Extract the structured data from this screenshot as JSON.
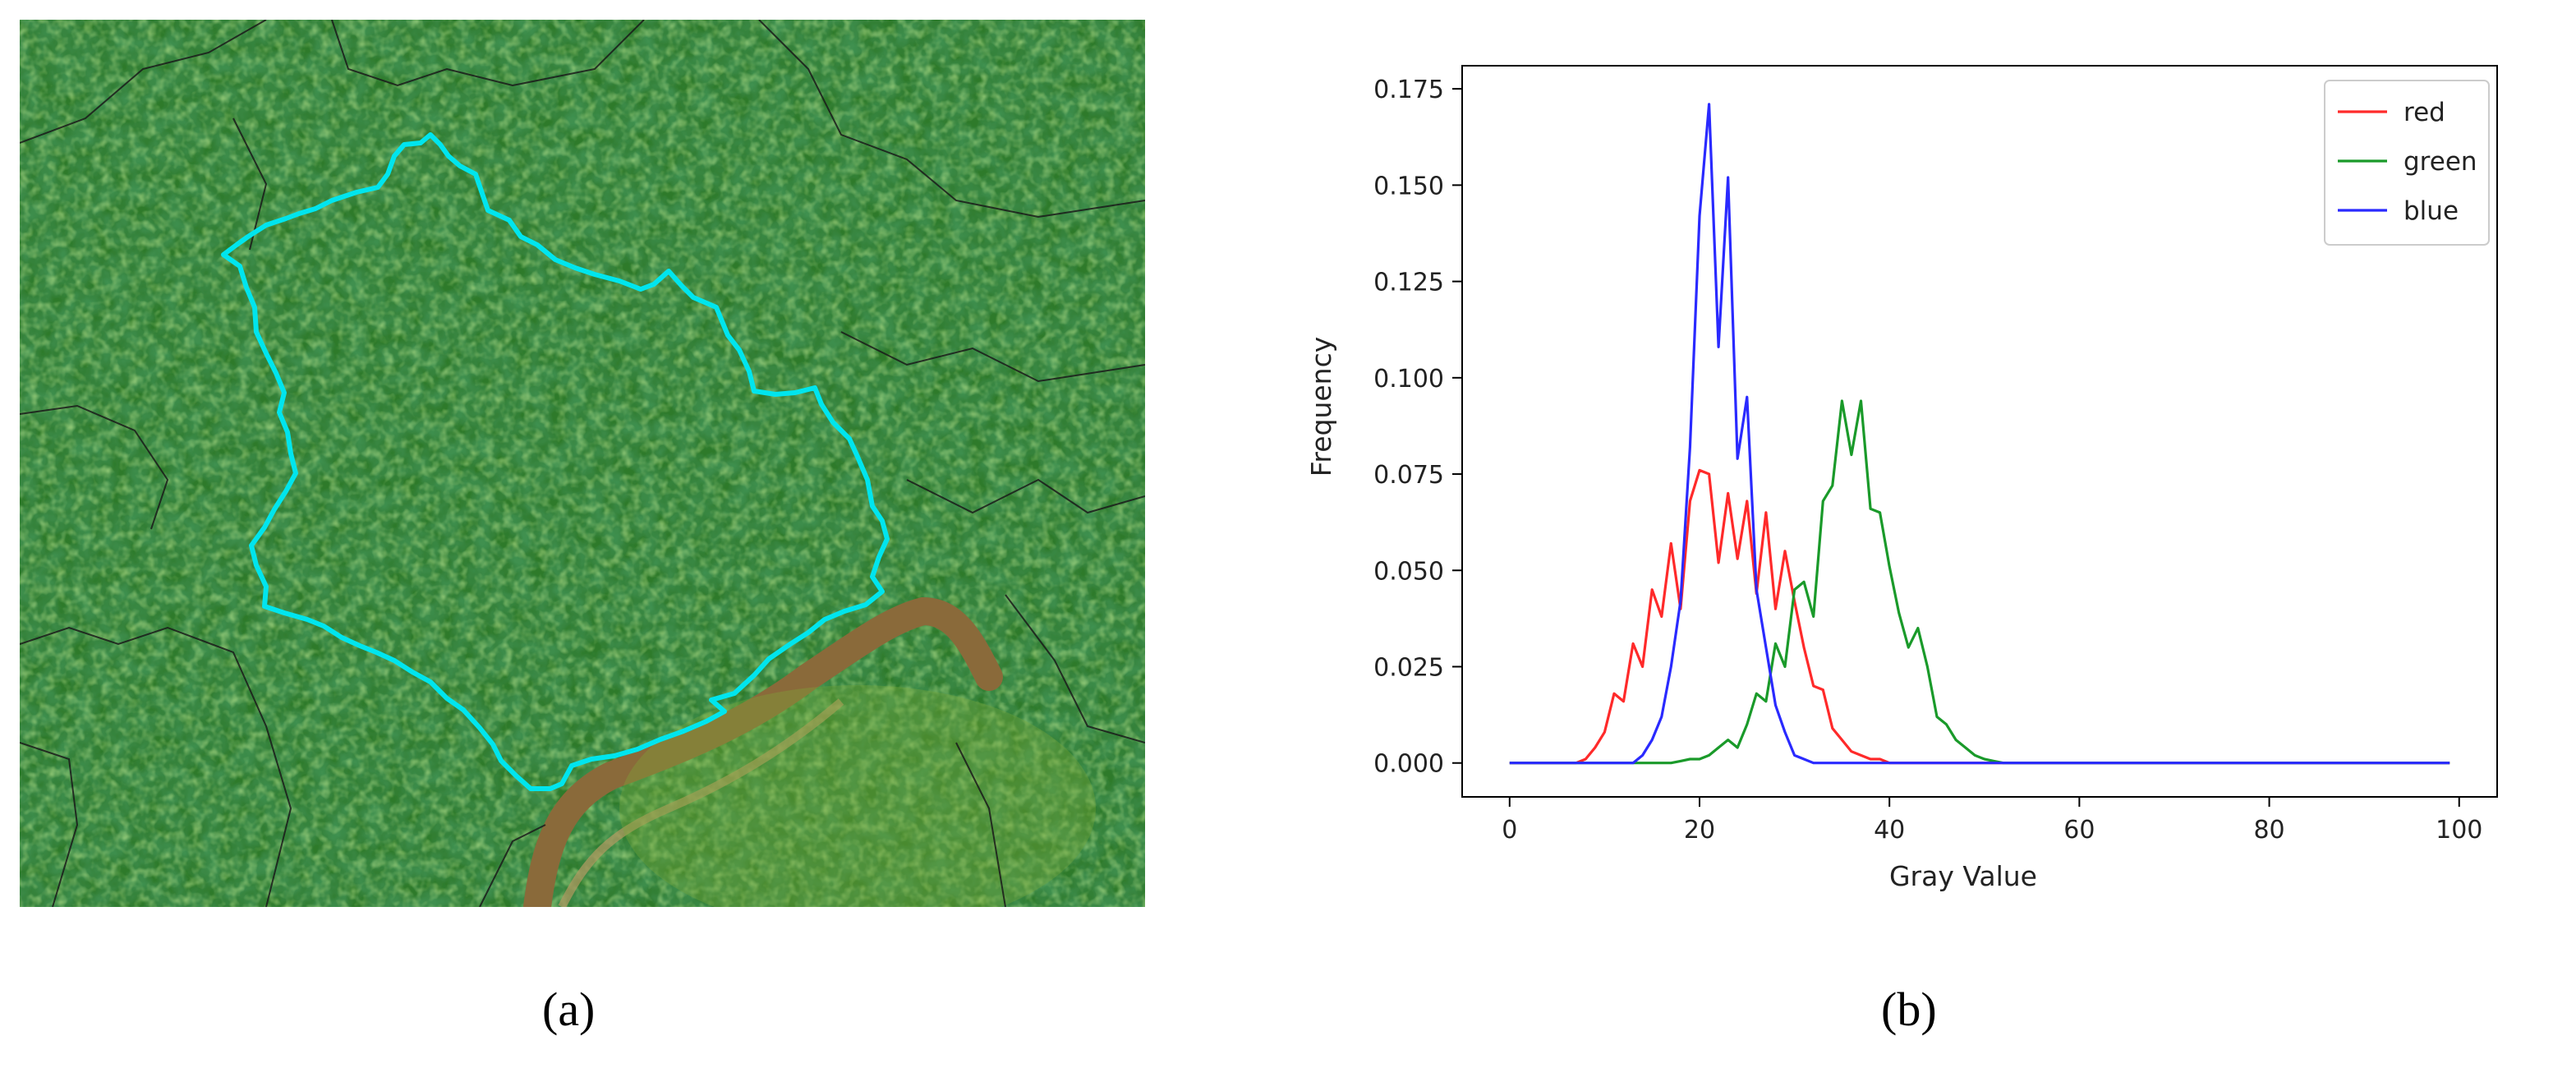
{
  "captions": {
    "a": "(a)",
    "b": "(b)"
  },
  "panel_a": {
    "photo": "aerial forest canopy",
    "outline_color": "#00e5ee",
    "boundary_color": "#1a1a1a"
  },
  "chart_data": {
    "type": "line",
    "xlabel": "Gray Value",
    "ylabel": "Frequency",
    "xlim": [
      -5,
      104
    ],
    "ylim": [
      -0.0088,
      0.181
    ],
    "x_ticks": [
      0,
      20,
      40,
      60,
      80,
      100
    ],
    "y_ticks": [
      0.0,
      0.025,
      0.05,
      0.075,
      0.1,
      0.125,
      0.15,
      0.175
    ],
    "y_tick_labels": [
      "0.000",
      "0.025",
      "0.050",
      "0.075",
      "0.100",
      "0.125",
      "0.150",
      "0.175"
    ],
    "grid": false,
    "legend_position": "top-right",
    "x": [
      0,
      1,
      2,
      3,
      4,
      5,
      6,
      7,
      8,
      9,
      10,
      11,
      12,
      13,
      14,
      15,
      16,
      17,
      18,
      19,
      20,
      21,
      22,
      23,
      24,
      25,
      26,
      27,
      28,
      29,
      30,
      31,
      32,
      33,
      34,
      35,
      36,
      37,
      38,
      39,
      40,
      41,
      42,
      43,
      44,
      45,
      46,
      47,
      48,
      49,
      50,
      51,
      52,
      53,
      54,
      55,
      56,
      57,
      58,
      59,
      60,
      61,
      62,
      63,
      64,
      65,
      66,
      67,
      68,
      69,
      70,
      71,
      72,
      73,
      74,
      75,
      76,
      77,
      78,
      79,
      80,
      81,
      82,
      83,
      84,
      85,
      86,
      87,
      88,
      89,
      90,
      91,
      92,
      93,
      94,
      95,
      96,
      97,
      98,
      99
    ],
    "series": [
      {
        "name": "red",
        "color": "#ff2a2a",
        "values": [
          0,
          0,
          0,
          0,
          0,
          0,
          0,
          0,
          0.001,
          0.004,
          0.008,
          0.018,
          0.016,
          0.031,
          0.025,
          0.045,
          0.038,
          0.057,
          0.04,
          0.068,
          0.076,
          0.075,
          0.052,
          0.07,
          0.053,
          0.068,
          0.044,
          0.065,
          0.04,
          0.055,
          0.042,
          0.03,
          0.02,
          0.019,
          0.009,
          0.006,
          0.003,
          0.002,
          0.001,
          0.001,
          0,
          0,
          0,
          0,
          0,
          0,
          0,
          0,
          0,
          0,
          0,
          0,
          0,
          0,
          0,
          0,
          0,
          0,
          0,
          0,
          0,
          0,
          0,
          0,
          0,
          0,
          0,
          0,
          0,
          0,
          0,
          0,
          0,
          0,
          0,
          0,
          0,
          0,
          0,
          0,
          0,
          0,
          0,
          0,
          0,
          0,
          0,
          0,
          0,
          0,
          0,
          0,
          0,
          0,
          0,
          0,
          0,
          0,
          0,
          0
        ]
      },
      {
        "name": "green",
        "color": "#1a9a2a",
        "values": [
          0,
          0,
          0,
          0,
          0,
          0,
          0,
          0,
          0,
          0,
          0,
          0,
          0,
          0,
          0,
          0,
          0,
          0,
          0.0005,
          0.001,
          0.001,
          0.002,
          0.004,
          0.006,
          0.004,
          0.01,
          0.018,
          0.016,
          0.031,
          0.025,
          0.045,
          0.047,
          0.038,
          0.068,
          0.072,
          0.094,
          0.08,
          0.094,
          0.066,
          0.065,
          0.051,
          0.039,
          0.03,
          0.035,
          0.025,
          0.012,
          0.01,
          0.006,
          0.004,
          0.002,
          0.001,
          0.0005,
          0,
          0,
          0,
          0,
          0,
          0,
          0,
          0,
          0,
          0,
          0,
          0,
          0,
          0,
          0,
          0,
          0,
          0,
          0,
          0,
          0,
          0,
          0,
          0,
          0,
          0,
          0,
          0,
          0,
          0,
          0,
          0,
          0,
          0,
          0,
          0,
          0,
          0,
          0,
          0,
          0,
          0,
          0,
          0,
          0,
          0,
          0,
          0
        ]
      },
      {
        "name": "blue",
        "color": "#2a2aff",
        "values": [
          0,
          0,
          0,
          0,
          0,
          0,
          0,
          0,
          0,
          0,
          0,
          0,
          0,
          0,
          0.002,
          0.006,
          0.012,
          0.025,
          0.042,
          0.082,
          0.142,
          0.171,
          0.108,
          0.152,
          0.079,
          0.095,
          0.045,
          0.03,
          0.015,
          0.008,
          0.002,
          0.001,
          0,
          0,
          0,
          0,
          0,
          0,
          0,
          0,
          0,
          0,
          0,
          0,
          0,
          0,
          0,
          0,
          0,
          0,
          0,
          0,
          0,
          0,
          0,
          0,
          0,
          0,
          0,
          0,
          0,
          0,
          0,
          0,
          0,
          0,
          0,
          0,
          0,
          0,
          0,
          0,
          0,
          0,
          0,
          0,
          0,
          0,
          0,
          0,
          0,
          0,
          0,
          0,
          0,
          0,
          0,
          0,
          0,
          0,
          0,
          0,
          0,
          0,
          0,
          0,
          0,
          0,
          0,
          0
        ]
      }
    ]
  }
}
